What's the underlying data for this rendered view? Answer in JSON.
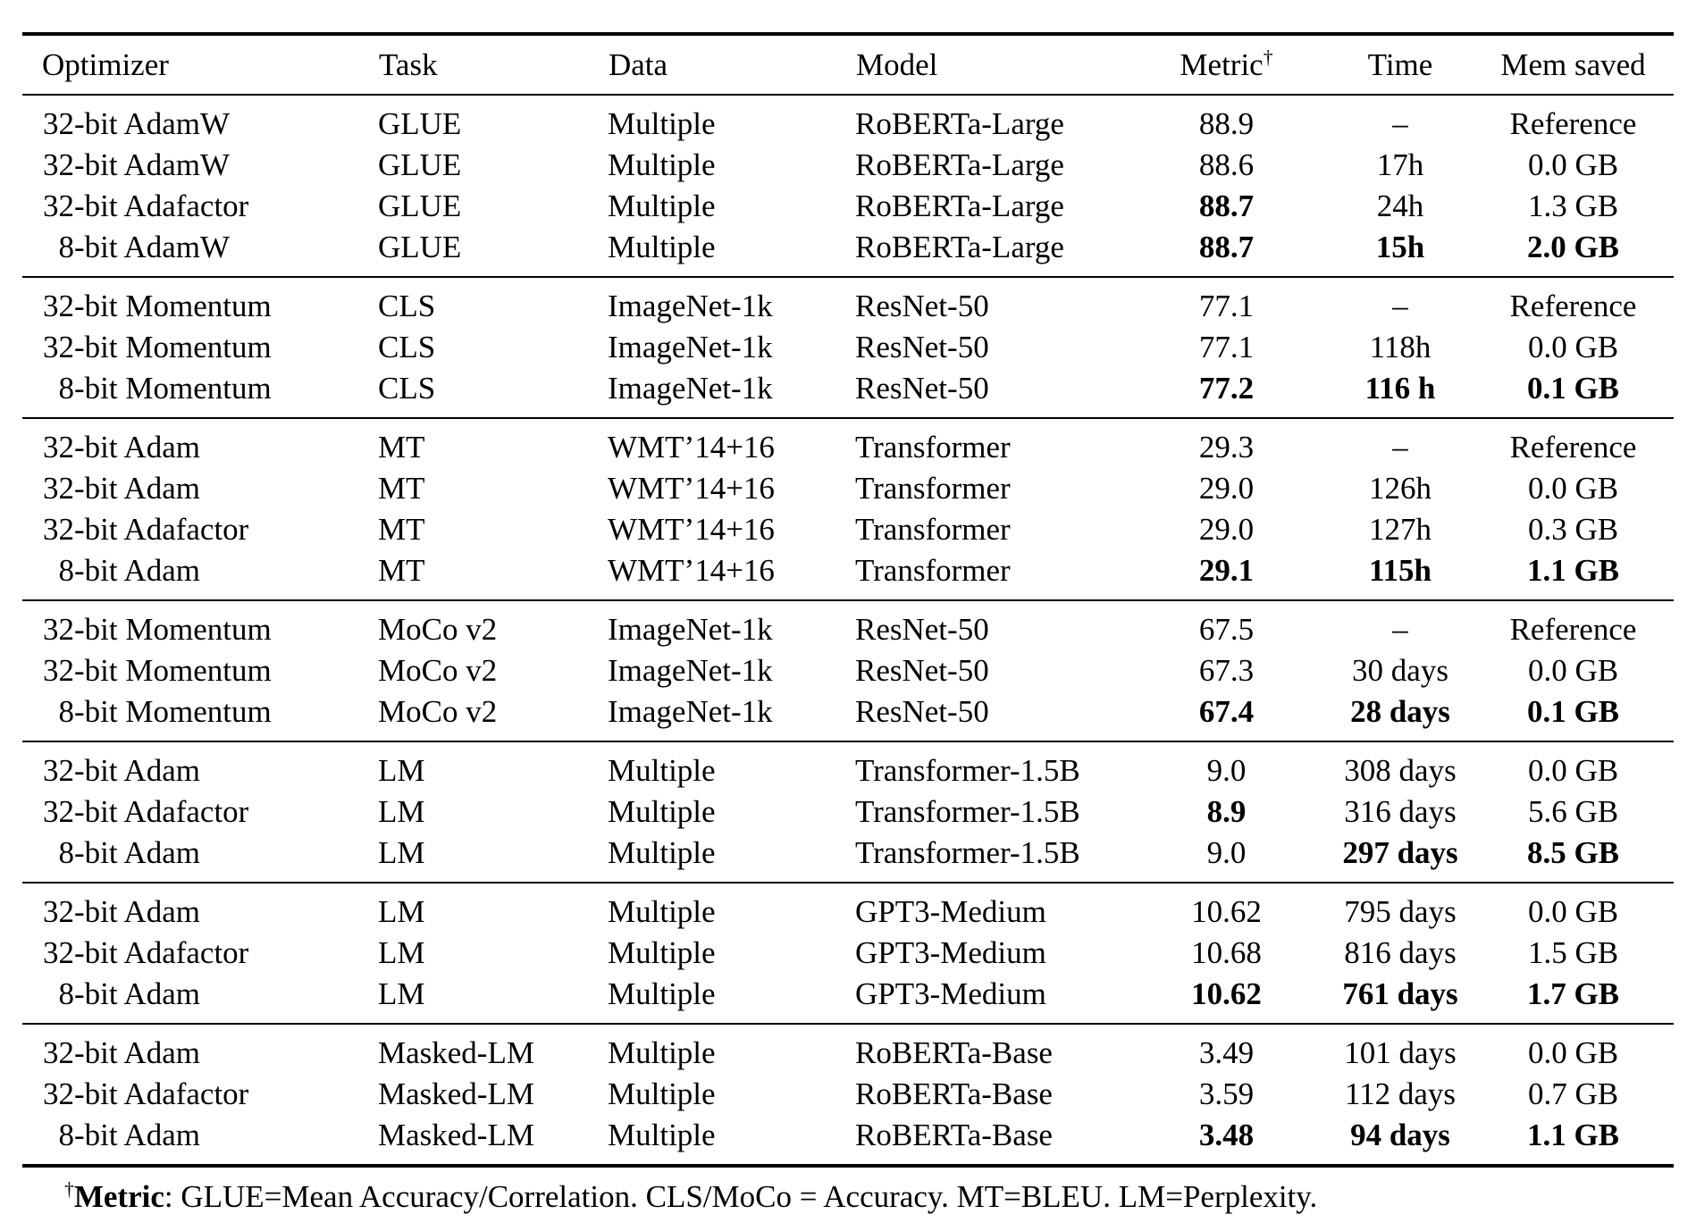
{
  "table": {
    "columns": [
      {
        "label": "Optimizer"
      },
      {
        "label": "Task"
      },
      {
        "label": "Data"
      },
      {
        "label": "Model"
      },
      {
        "label": "Metric",
        "sup": "†"
      },
      {
        "label": "Time"
      },
      {
        "label": "Mem saved"
      }
    ],
    "groups": [
      {
        "rows": [
          {
            "cells": [
              {
                "t": "32-bit AdamW"
              },
              {
                "t": "GLUE"
              },
              {
                "t": "Multiple"
              },
              {
                "t": "RoBERTa-Large"
              },
              {
                "t": "88.9"
              },
              {
                "t": "–"
              },
              {
                "t": "Reference"
              }
            ]
          },
          {
            "cells": [
              {
                "t": "32-bit AdamW"
              },
              {
                "t": "GLUE"
              },
              {
                "t": "Multiple"
              },
              {
                "t": "RoBERTa-Large"
              },
              {
                "t": "88.6"
              },
              {
                "t": "17h"
              },
              {
                "t": "0.0 GB"
              }
            ]
          },
          {
            "cells": [
              {
                "t": "32-bit Adafactor"
              },
              {
                "t": "GLUE"
              },
              {
                "t": "Multiple"
              },
              {
                "t": "RoBERTa-Large"
              },
              {
                "t": "88.7",
                "b": true
              },
              {
                "t": "24h"
              },
              {
                "t": "1.3 GB"
              }
            ]
          },
          {
            "cells": [
              {
                "t": "8-bit AdamW"
              },
              {
                "t": "GLUE"
              },
              {
                "t": "Multiple"
              },
              {
                "t": "RoBERTa-Large"
              },
              {
                "t": "88.7",
                "b": true
              },
              {
                "t": "15h",
                "b": true
              },
              {
                "t": "2.0 GB",
                "b": true
              }
            ]
          }
        ]
      },
      {
        "rows": [
          {
            "cells": [
              {
                "t": "32-bit Momentum"
              },
              {
                "t": "CLS"
              },
              {
                "t": "ImageNet-1k"
              },
              {
                "t": "ResNet-50"
              },
              {
                "t": "77.1"
              },
              {
                "t": "–"
              },
              {
                "t": "Reference"
              }
            ]
          },
          {
            "cells": [
              {
                "t": "32-bit Momentum"
              },
              {
                "t": "CLS"
              },
              {
                "t": "ImageNet-1k"
              },
              {
                "t": "ResNet-50"
              },
              {
                "t": "77.1"
              },
              {
                "t": "118h"
              },
              {
                "t": "0.0 GB"
              }
            ]
          },
          {
            "cells": [
              {
                "t": "8-bit Momentum"
              },
              {
                "t": "CLS"
              },
              {
                "t": "ImageNet-1k"
              },
              {
                "t": "ResNet-50"
              },
              {
                "t": "77.2",
                "b": true
              },
              {
                "t": "116 h",
                "b": true
              },
              {
                "t": "0.1 GB",
                "b": true
              }
            ]
          }
        ]
      },
      {
        "rows": [
          {
            "cells": [
              {
                "t": "32-bit Adam"
              },
              {
                "t": "MT"
              },
              {
                "t": "WMT’14+16"
              },
              {
                "t": "Transformer"
              },
              {
                "t": "29.3"
              },
              {
                "t": "–"
              },
              {
                "t": "Reference"
              }
            ]
          },
          {
            "cells": [
              {
                "t": "32-bit Adam"
              },
              {
                "t": "MT"
              },
              {
                "t": "WMT’14+16"
              },
              {
                "t": "Transformer"
              },
              {
                "t": "29.0"
              },
              {
                "t": "126h"
              },
              {
                "t": "0.0 GB"
              }
            ]
          },
          {
            "cells": [
              {
                "t": "32-bit Adafactor"
              },
              {
                "t": "MT"
              },
              {
                "t": "WMT’14+16"
              },
              {
                "t": "Transformer"
              },
              {
                "t": "29.0"
              },
              {
                "t": "127h"
              },
              {
                "t": "0.3 GB"
              }
            ]
          },
          {
            "cells": [
              {
                "t": "8-bit Adam"
              },
              {
                "t": "MT"
              },
              {
                "t": "WMT’14+16"
              },
              {
                "t": "Transformer"
              },
              {
                "t": "29.1",
                "b": true
              },
              {
                "t": "115h",
                "b": true
              },
              {
                "t": "1.1 GB",
                "b": true
              }
            ]
          }
        ]
      },
      {
        "rows": [
          {
            "cells": [
              {
                "t": "32-bit Momentum"
              },
              {
                "t": "MoCo v2"
              },
              {
                "t": "ImageNet-1k"
              },
              {
                "t": "ResNet-50"
              },
              {
                "t": "67.5"
              },
              {
                "t": "–"
              },
              {
                "t": "Reference"
              }
            ]
          },
          {
            "cells": [
              {
                "t": "32-bit Momentum"
              },
              {
                "t": "MoCo v2"
              },
              {
                "t": "ImageNet-1k"
              },
              {
                "t": "ResNet-50"
              },
              {
                "t": "67.3"
              },
              {
                "t": "30 days"
              },
              {
                "t": "0.0 GB"
              }
            ]
          },
          {
            "cells": [
              {
                "t": "8-bit Momentum"
              },
              {
                "t": "MoCo v2"
              },
              {
                "t": "ImageNet-1k"
              },
              {
                "t": "ResNet-50"
              },
              {
                "t": "67.4",
                "b": true
              },
              {
                "t": "28 days",
                "b": true
              },
              {
                "t": "0.1 GB",
                "b": true
              }
            ]
          }
        ]
      },
      {
        "rows": [
          {
            "cells": [
              {
                "t": "32-bit Adam"
              },
              {
                "t": "LM"
              },
              {
                "t": "Multiple"
              },
              {
                "t": "Transformer-1.5B"
              },
              {
                "t": "9.0"
              },
              {
                "t": "308 days"
              },
              {
                "t": "0.0 GB"
              }
            ]
          },
          {
            "cells": [
              {
                "t": "32-bit Adafactor"
              },
              {
                "t": "LM"
              },
              {
                "t": "Multiple"
              },
              {
                "t": "Transformer-1.5B"
              },
              {
                "t": "8.9",
                "b": true
              },
              {
                "t": "316 days"
              },
              {
                "t": "5.6 GB"
              }
            ]
          },
          {
            "cells": [
              {
                "t": "8-bit Adam"
              },
              {
                "t": "LM"
              },
              {
                "t": "Multiple"
              },
              {
                "t": "Transformer-1.5B"
              },
              {
                "t": "9.0"
              },
              {
                "t": "297 days",
                "b": true
              },
              {
                "t": "8.5 GB",
                "b": true
              }
            ]
          }
        ]
      },
      {
        "rows": [
          {
            "cells": [
              {
                "t": "32-bit Adam"
              },
              {
                "t": "LM"
              },
              {
                "t": "Multiple"
              },
              {
                "t": "GPT3-Medium"
              },
              {
                "t": "10.62"
              },
              {
                "t": "795 days"
              },
              {
                "t": "0.0 GB"
              }
            ]
          },
          {
            "cells": [
              {
                "t": "32-bit Adafactor"
              },
              {
                "t": "LM"
              },
              {
                "t": "Multiple"
              },
              {
                "t": "GPT3-Medium"
              },
              {
                "t": "10.68"
              },
              {
                "t": "816 days"
              },
              {
                "t": "1.5 GB"
              }
            ]
          },
          {
            "cells": [
              {
                "t": "8-bit Adam"
              },
              {
                "t": "LM"
              },
              {
                "t": "Multiple"
              },
              {
                "t": "GPT3-Medium"
              },
              {
                "t": "10.62",
                "b": true
              },
              {
                "t": "761 days",
                "b": true
              },
              {
                "t": "1.7 GB",
                "b": true
              }
            ]
          }
        ]
      },
      {
        "rows": [
          {
            "cells": [
              {
                "t": "32-bit Adam"
              },
              {
                "t": "Masked-LM"
              },
              {
                "t": "Multiple"
              },
              {
                "t": "RoBERTa-Base"
              },
              {
                "t": "3.49"
              },
              {
                "t": "101 days"
              },
              {
                "t": "0.0 GB"
              }
            ]
          },
          {
            "cells": [
              {
                "t": "32-bit Adafactor"
              },
              {
                "t": "Masked-LM"
              },
              {
                "t": "Multiple"
              },
              {
                "t": "RoBERTa-Base"
              },
              {
                "t": "3.59"
              },
              {
                "t": "112 days"
              },
              {
                "t": "0.7 GB"
              }
            ]
          },
          {
            "cells": [
              {
                "t": "8-bit Adam"
              },
              {
                "t": "Masked-LM"
              },
              {
                "t": "Multiple"
              },
              {
                "t": "RoBERTa-Base"
              },
              {
                "t": "3.48",
                "b": true
              },
              {
                "t": "94 days",
                "b": true
              },
              {
                "t": "1.1 GB",
                "b": true
              }
            ]
          }
        ]
      }
    ],
    "footnote": {
      "dagger": "†",
      "label": "Metric",
      "rest": ": GLUE=Mean Accuracy/Correlation. CLS/MoCo = Accuracy. MT=BLEU. LM=Perplexity."
    }
  }
}
